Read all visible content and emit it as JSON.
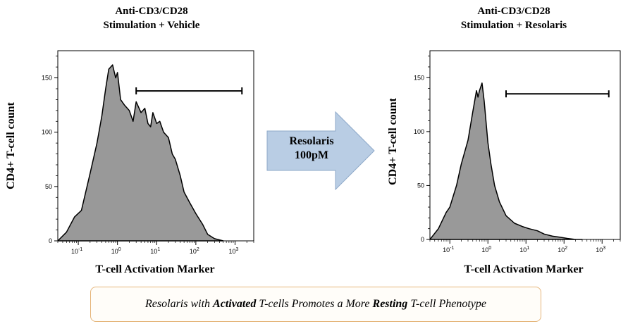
{
  "chart_data": [
    {
      "type": "area",
      "title_line1": "Anti-CD3/CD28",
      "title_line2": "Stimulation + Vehicle",
      "xlabel": "T-cell Activation Marker",
      "ylabel": "CD4+ T-cell count",
      "xscale": "log",
      "xlim": [
        0.03,
        3000
      ],
      "ylim": [
        0,
        175
      ],
      "yticks": [
        0,
        50,
        100,
        150
      ],
      "xtick_labels": [
        "10-1",
        "100",
        "101",
        "102",
        "103"
      ],
      "gate_range": [
        3,
        1500
      ],
      "gate_y": 138,
      "x": [
        0.03,
        0.05,
        0.08,
        0.12,
        0.2,
        0.3,
        0.4,
        0.5,
        0.6,
        0.75,
        0.9,
        1.0,
        1.2,
        1.5,
        2.0,
        2.5,
        3.0,
        4.0,
        5.0,
        6.0,
        7.0,
        8.0,
        10,
        12,
        15,
        20,
        25,
        30,
        40,
        50,
        70,
        100,
        150,
        200,
        300,
        500
      ],
      "y": [
        0,
        8,
        22,
        28,
        62,
        90,
        115,
        140,
        158,
        162,
        150,
        155,
        130,
        125,
        120,
        110,
        128,
        118,
        122,
        108,
        105,
        118,
        108,
        110,
        100,
        95,
        80,
        75,
        60,
        45,
        35,
        25,
        15,
        6,
        2,
        0
      ]
    },
    {
      "type": "area",
      "title_line1": "Anti-CD3/CD28",
      "title_line2": "Stimulation + Resolaris",
      "xlabel": "T-cell Activation Marker",
      "ylabel": "CD4+ T-cell count",
      "xscale": "log",
      "xlim": [
        0.03,
        3000
      ],
      "ylim": [
        0,
        175
      ],
      "yticks": [
        0,
        50,
        100,
        150
      ],
      "xtick_labels": [
        "10-1",
        "100",
        "101",
        "102",
        "103"
      ],
      "gate_range": [
        3,
        1500
      ],
      "gate_y": 135,
      "x": [
        0.03,
        0.05,
        0.08,
        0.1,
        0.15,
        0.2,
        0.3,
        0.4,
        0.5,
        0.55,
        0.6,
        0.7,
        0.8,
        1.0,
        1.2,
        1.5,
        2.0,
        3.0,
        5.0,
        8.0,
        12,
        20,
        30,
        50,
        80,
        120,
        200,
        300
      ],
      "y": [
        0,
        10,
        25,
        30,
        50,
        70,
        92,
        118,
        138,
        132,
        138,
        145,
        128,
        90,
        70,
        50,
        35,
        22,
        15,
        12,
        10,
        8,
        5,
        3,
        2,
        1,
        0,
        0
      ]
    }
  ],
  "arrow": {
    "label_line1": "Resolaris",
    "label_line2": "100pM",
    "fill": "#b9cde4",
    "stroke": "#8ea9c9"
  },
  "caption": {
    "part1": "Resolaris with ",
    "bold1": "Activated",
    "part2": " T-cells Promotes a More ",
    "bold2": "Resting",
    "part3": " T-cell Phenotype",
    "border": "#e5b57a"
  },
  "colors": {
    "fill": "#999999",
    "stroke": "#000000"
  }
}
